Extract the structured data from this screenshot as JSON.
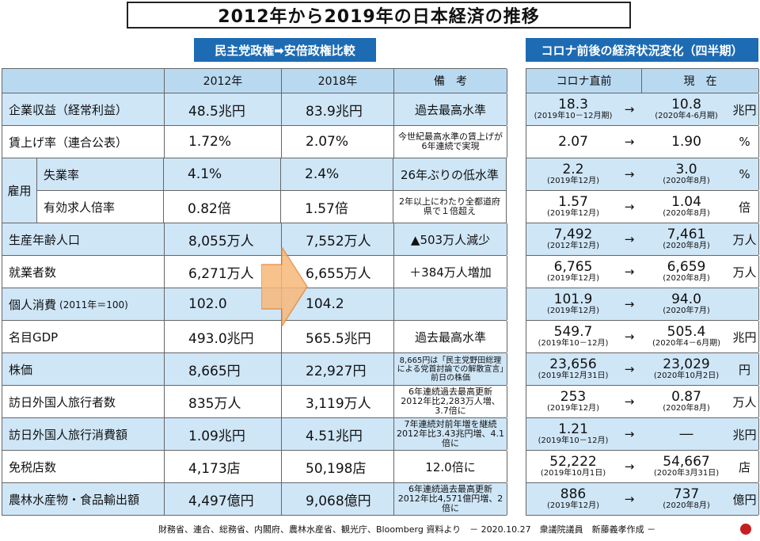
{
  "title": "2012年から2019年の日本経済の推移",
  "left_header": "民主党政権➡安倍政権比較",
  "right_header": "コロナ前後の経済状況変化（四半期）",
  "left_columns": [
    "",
    "2012年",
    "2018年",
    "備　考"
  ],
  "right_columns": [
    "コロナ直前",
    "現　在"
  ],
  "employment_group": "雇用",
  "rows": [
    {
      "label": "企業収益（経常利益）",
      "v2012": "48.5兆円",
      "v2018": "83.9兆円",
      "note": "過去最高水準",
      "before": "18.3",
      "before_date": "(2019年10－12月期)",
      "arrow": "→",
      "after": "10.8",
      "after_date": "(2020年4-6月期)",
      "unit": "兆円"
    },
    {
      "label": "賃上げ率（連合公表）",
      "v2012": "1.72%",
      "v2018": "2.07%",
      "note": "今世紀最高水準の賃上げが6年連続で実現",
      "before": "2.07",
      "before_date": "",
      "arrow": "→",
      "after": "1.90",
      "after_date": "",
      "unit": "%"
    },
    {
      "label": "失業率",
      "v2012": "4.1%",
      "v2018": "2.4%",
      "note": "26年ぶりの低水準",
      "before": "2.2",
      "before_date": "(2019年12月)",
      "arrow": "→",
      "after": "3.0",
      "after_date": "(2020年8月)",
      "unit": "%"
    },
    {
      "label": "有効求人倍率",
      "v2012": "0.82倍",
      "v2018": "1.57倍",
      "note": "2年以上にわたり全都道府県で１倍超え",
      "before": "1.57",
      "before_date": "(2019年12月)",
      "arrow": "→",
      "after": "1.04",
      "after_date": "(2020年8月)",
      "unit": "倍"
    },
    {
      "label": "生産年齢人口",
      "v2012": "8,055万人",
      "v2018": "7,552万人",
      "note": "▲503万人減少",
      "before": "7,492",
      "before_date": "(2012年12月)",
      "arrow": "→",
      "after": "7,461",
      "after_date": "(2020年8月)",
      "unit": "万人"
    },
    {
      "label": "就業者数",
      "v2012": "6,271万人",
      "v2018": "6,655万人",
      "note": "＋384万人増加",
      "before": "6,765",
      "before_date": "(2019年12月)",
      "arrow": "→",
      "after": "6,659",
      "after_date": "(2020年8月)",
      "unit": "万人"
    },
    {
      "label": "個人消費",
      "label_sub": "(2011年＝100)",
      "v2012": "102.0",
      "v2018": "104.2",
      "note": "",
      "before": "101.9",
      "before_date": "(2019年12月)",
      "arrow": "→",
      "after": "94.0",
      "after_date": "(2020年7月)",
      "unit": ""
    },
    {
      "label": "名目GDP",
      "v2012": "493.0兆円",
      "v2018": "565.5兆円",
      "note": "過去最高水準",
      "before": "549.7",
      "before_date": "(2019年10－12月)",
      "arrow": "→",
      "after": "505.4",
      "after_date": "(2020年4－6月期)",
      "unit": "兆円"
    },
    {
      "label": "株価",
      "v2012": "8,665円",
      "v2018": "22,927円",
      "note": "8,665円は「民主党野田総理による党首討論での解散宣言」前日の株価",
      "before": "23,656",
      "before_date": "(2019年12月31日)",
      "arrow": "→",
      "after": "23,029",
      "after_date": "(2020年10月2日)",
      "unit": "円"
    },
    {
      "label": "訪日外国人旅行者数",
      "v2012": "835万人",
      "v2018": "3,119万人",
      "note": "6年連続過去最高更新 2012年比2,283万人増、3.7倍に",
      "before": "253",
      "before_date": "(2019年12月)",
      "arrow": "→",
      "after": "0.87",
      "after_date": "(2020年8月)",
      "unit": "万人"
    },
    {
      "label": "訪日外国人旅行消費額",
      "v2012": "1.09兆円",
      "v2018": "4.51兆円",
      "note": "7年連続対前年増を継続 2012年比3.43兆円増、4.1倍に",
      "before": "1.21",
      "before_date": "(2019年10－12月)",
      "arrow": "→",
      "after": "―",
      "after_date": "",
      "unit": "兆円"
    },
    {
      "label": "免税店数",
      "v2012": "4,173店",
      "v2018": "50,198店",
      "note": "12.0倍に",
      "before": "52,222",
      "before_date": "(2019年10月1日)",
      "arrow": "→",
      "after": "54,667",
      "after_date": "(2020年3月31日)",
      "unit": "店"
    },
    {
      "label": "農林水産物・食品輸出額",
      "v2012": "4,497億円",
      "v2018": "9,068億円",
      "note": "6年連続過去最高更新 2012年比4,571億円増、2倍に",
      "before": "886",
      "before_date": "(2019年12月)",
      "arrow": "→",
      "after": "737",
      "after_date": "(2020年8月)",
      "unit": "億円"
    }
  ],
  "footer": "財務省、連合、総務省、内閣府、農林水産省、観光庁、Bloomberg 資料より　－ 2020.10.27　衆議院議員　新藤義孝作成 －",
  "colors": {
    "blue_header": "#1d6bb3",
    "row_blue": "#cfe6f7",
    "row_white": "#ffffff",
    "table_header": "#b9d9f0",
    "arrow": "#f7b87a"
  }
}
